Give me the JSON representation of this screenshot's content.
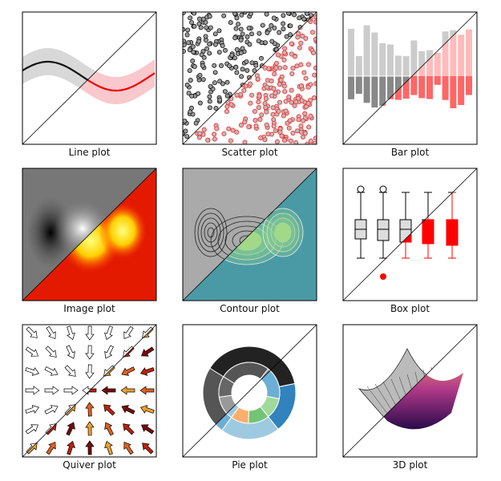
{
  "panels": [
    {
      "label": "Line plot"
    },
    {
      "label": "Scatter plot"
    },
    {
      "label": "Bar plot"
    },
    {
      "label": "Image plot"
    },
    {
      "label": "Contour plot"
    },
    {
      "label": "Box plot"
    },
    {
      "label": "Quiver plot"
    },
    {
      "label": "Pie plot"
    },
    {
      "label": "3D plot"
    }
  ]
}
